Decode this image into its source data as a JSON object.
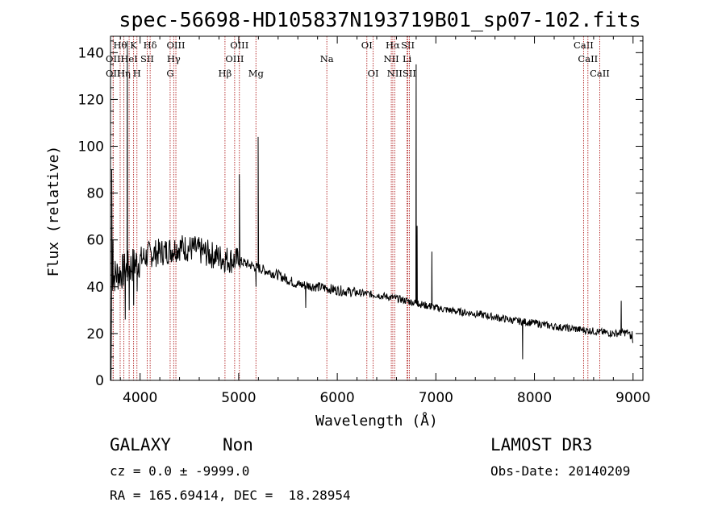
{
  "chart_data": {
    "type": "line",
    "title": "spec-56698-HD105837N193719B01_sp07-102.fits",
    "xlabel": "Wavelength (Å)",
    "ylabel": "Flux (relative)",
    "xlim": [
      3700,
      9100
    ],
    "ylim": [
      0,
      147
    ],
    "xticks": [
      4000,
      5000,
      6000,
      7000,
      8000,
      9000
    ],
    "yticks": [
      0,
      20,
      40,
      60,
      80,
      100,
      120,
      140
    ],
    "series": [
      {
        "name": "spectrum",
        "continuum": [
          [
            3700,
            44
          ],
          [
            3850,
            47
          ],
          [
            3950,
            50
          ],
          [
            4100,
            54
          ],
          [
            4250,
            55
          ],
          [
            4400,
            57
          ],
          [
            4550,
            56
          ],
          [
            4700,
            54
          ],
          [
            4850,
            52
          ],
          [
            5000,
            51
          ],
          [
            5200,
            48
          ],
          [
            5400,
            45
          ],
          [
            5600,
            41
          ],
          [
            5800,
            40
          ],
          [
            6000,
            38.5
          ],
          [
            6200,
            37.5
          ],
          [
            6400,
            36.5
          ],
          [
            6600,
            35
          ],
          [
            6800,
            33
          ],
          [
            7000,
            31
          ],
          [
            7200,
            29.5
          ],
          [
            7400,
            28.5
          ],
          [
            7600,
            27
          ],
          [
            7800,
            25.5
          ],
          [
            8000,
            24.5
          ],
          [
            8200,
            23
          ],
          [
            8400,
            22
          ],
          [
            8600,
            21
          ],
          [
            8800,
            20
          ],
          [
            8950,
            20.5
          ],
          [
            9000,
            17
          ]
        ],
        "features": [
          {
            "x": 3705,
            "y": 0
          },
          {
            "x": 3712,
            "y": 90
          },
          {
            "x": 3725,
            "y": 60
          },
          {
            "x": 3850,
            "y": 26
          },
          {
            "x": 3870,
            "y": 145
          },
          {
            "x": 3890,
            "y": 30
          },
          {
            "x": 3935,
            "y": 32
          },
          {
            "x": 3970,
            "y": 38
          },
          {
            "x": 5007,
            "y": 88
          },
          {
            "x": 5015,
            "y": 48
          },
          {
            "x": 5176,
            "y": 40
          },
          {
            "x": 5197,
            "y": 104
          },
          {
            "x": 5210,
            "y": 49
          },
          {
            "x": 5680,
            "y": 31
          },
          {
            "x": 6790,
            "y": 34
          },
          {
            "x": 6800,
            "y": 135
          },
          {
            "x": 6810,
            "y": 66
          },
          {
            "x": 6820,
            "y": 34
          },
          {
            "x": 6950,
            "y": 33
          },
          {
            "x": 6960,
            "y": 55
          },
          {
            "x": 6972,
            "y": 32
          },
          {
            "x": 7880,
            "y": 9
          },
          {
            "x": 8880,
            "y": 34
          },
          {
            "x": 8990,
            "y": 21
          },
          {
            "x": 9000,
            "y": 16
          }
        ]
      }
    ],
    "line_markers": [
      {
        "label": "OII",
        "x": 3727,
        "row": 3
      },
      {
        "label": "OII",
        "x": 3727,
        "row": 2
      },
      {
        "label": "Hθ",
        "x": 3798,
        "row": 1
      },
      {
        "label": "Hη",
        "x": 3835,
        "row": 3
      },
      {
        "label": "HeI",
        "x": 3889,
        "row": 2
      },
      {
        "label": "K",
        "x": 3934,
        "row": 1
      },
      {
        "label": "H",
        "x": 3968,
        "row": 3
      },
      {
        "label": "SII",
        "x": 4072,
        "row": 2
      },
      {
        "label": "Hδ",
        "x": 4102,
        "row": 1
      },
      {
        "label": "G",
        "x": 4305,
        "row": 3
      },
      {
        "label": "Hγ",
        "x": 4341,
        "row": 2
      },
      {
        "label": "OIII",
        "x": 4363,
        "row": 1
      },
      {
        "label": "Hβ",
        "x": 4861,
        "row": 3
      },
      {
        "label": "OIII",
        "x": 4959,
        "row": 2
      },
      {
        "label": "OIII",
        "x": 5007,
        "row": 1
      },
      {
        "label": "Mg",
        "x": 5175,
        "row": 3
      },
      {
        "label": "Na",
        "x": 5894,
        "row": 2
      },
      {
        "label": "OI",
        "x": 6300,
        "row": 1
      },
      {
        "label": "OI",
        "x": 6364,
        "row": 3
      },
      {
        "label": "NII",
        "x": 6548,
        "row": 2
      },
      {
        "label": "Hα",
        "x": 6563,
        "row": 1
      },
      {
        "label": "NII",
        "x": 6583,
        "row": 3
      },
      {
        "label": "Li",
        "x": 6708,
        "row": 2
      },
      {
        "label": "SII",
        "x": 6716,
        "row": 1
      },
      {
        "label": "SII",
        "x": 6731,
        "row": 3
      },
      {
        "label": "CaII",
        "x": 8498,
        "row": 1
      },
      {
        "label": "CaII",
        "x": 8542,
        "row": 2
      },
      {
        "label": "CaII",
        "x": 8662,
        "row": 3
      }
    ]
  },
  "info": {
    "class_label": "GALAXY",
    "subclass_label": "Non",
    "cz_line": "cz = 0.0 ± -9999.0",
    "coords_line": "RA = 165.69414, DEC =  18.28954",
    "survey_label": "LAMOST DR3",
    "obs_date_line": "Obs-Date: 20140209"
  },
  "colors": {
    "spectrum": "#000000",
    "markers": "#b22222",
    "axes": "#000000"
  }
}
